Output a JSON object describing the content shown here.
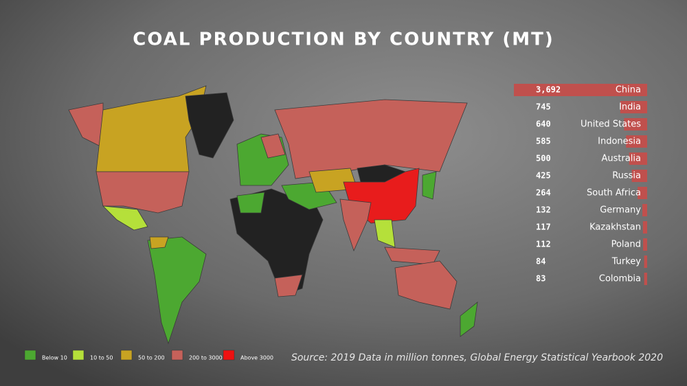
{
  "chart_data": {
    "type": "bar",
    "title": "COAL PRODUCTION BY COUNTRY (MT)",
    "categories": [
      "China",
      "India",
      "United States",
      "Indonesia",
      "Australia",
      "Russia",
      "South Africa",
      "Germany",
      "Kazakhstan",
      "Poland",
      "Turkey",
      "Colombia"
    ],
    "values": [
      3692,
      745,
      640,
      585,
      500,
      425,
      264,
      132,
      117,
      112,
      84,
      83
    ],
    "value_labels": [
      "3,692",
      "745",
      "640",
      "585",
      "500",
      "425",
      "264",
      "132",
      "117",
      "112",
      "84",
      "83"
    ],
    "color": "#c0504d",
    "legend": [
      {
        "label": "Below 10",
        "color": "#4ca831"
      },
      {
        "label": "10 to 50",
        "color": "#b5e03a"
      },
      {
        "label": "50 to 200",
        "color": "#c8a322"
      },
      {
        "label": "200 to 3000",
        "color": "#c5615a"
      },
      {
        "label": "Above 3000",
        "color": "#ee1111"
      }
    ],
    "source": "Source: 2019 Data in million tonnes, Global Energy Statistical Yearbook 2020"
  }
}
